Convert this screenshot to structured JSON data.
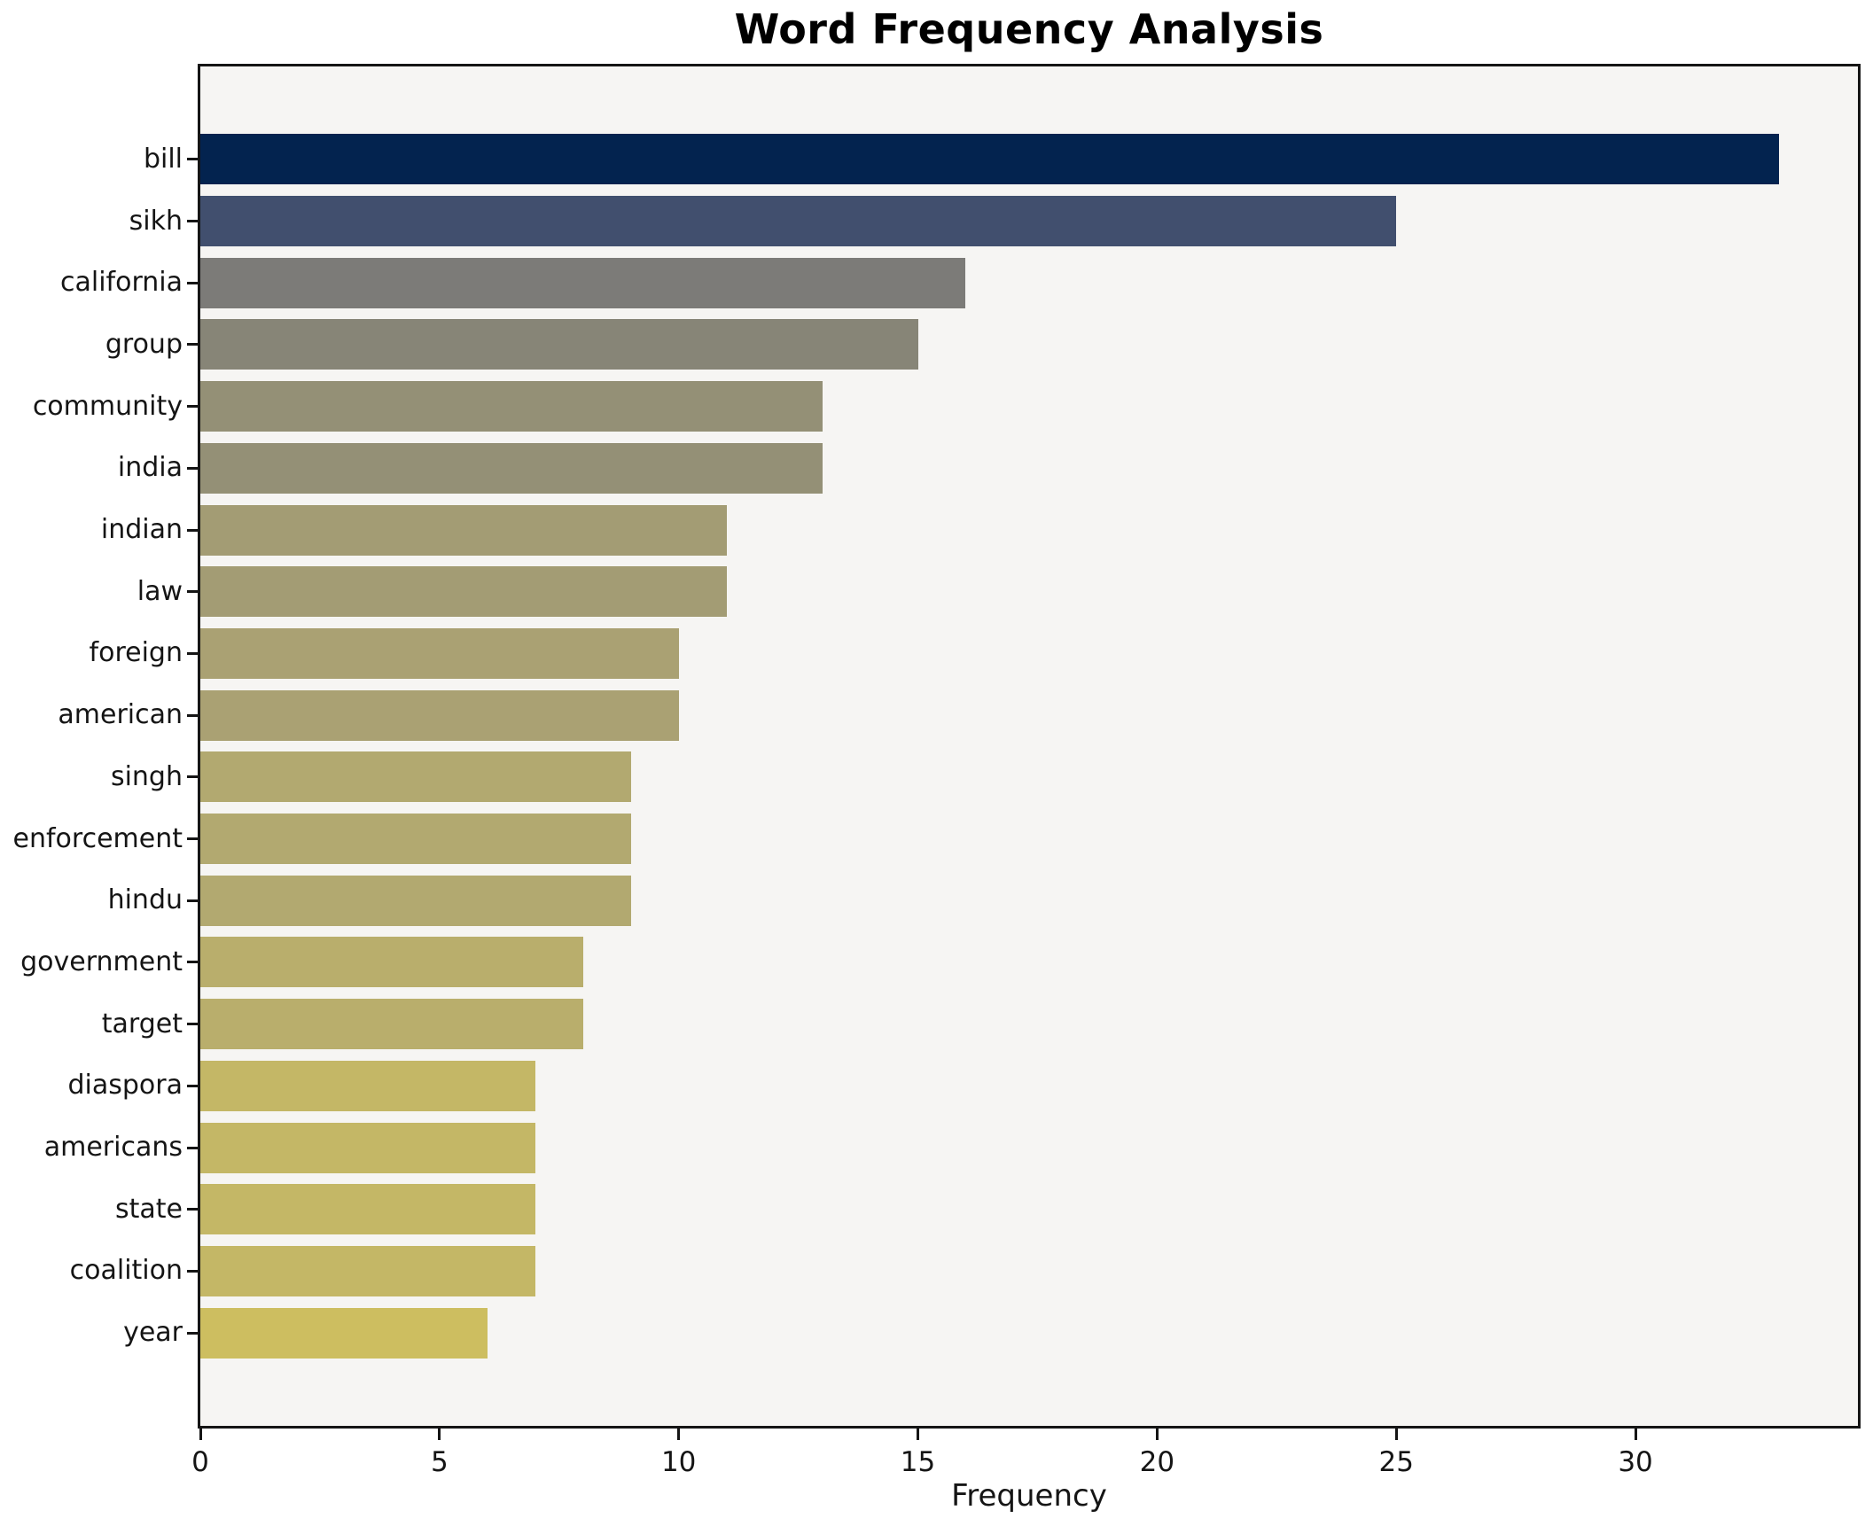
{
  "chart_data": {
    "type": "bar",
    "orientation": "horizontal",
    "title": "Word Frequency Analysis",
    "xlabel": "Frequency",
    "ylabel": "",
    "categories": [
      "bill",
      "sikh",
      "california",
      "group",
      "community",
      "india",
      "indian",
      "law",
      "foreign",
      "american",
      "singh",
      "enforcement",
      "hindu",
      "government",
      "target",
      "diaspora",
      "americans",
      "state",
      "coalition",
      "year"
    ],
    "values": [
      33,
      25,
      16,
      15,
      13,
      13,
      11,
      11,
      10,
      10,
      9,
      9,
      9,
      8,
      8,
      7,
      7,
      7,
      7,
      6
    ],
    "bar_colors": [
      "#03234f",
      "#414f6e",
      "#7c7b78",
      "#878577",
      "#949076",
      "#949076",
      "#a39c74",
      "#a39c74",
      "#aaa173",
      "#aaa173",
      "#b2a970",
      "#b2a970",
      "#b2a970",
      "#b9ae6c",
      "#b9ae6c",
      "#c4b766",
      "#c4b766",
      "#c4b766",
      "#c4b766",
      "#cdbe60"
    ],
    "xticks": [
      0,
      5,
      10,
      15,
      20,
      25,
      30
    ],
    "xlim": [
      0,
      34.65
    ],
    "grid": false,
    "legend": "none",
    "colors": {
      "plot_background": "#f6f5f3",
      "figure_background": "#ffffff",
      "spine": "#151515",
      "text": "#151515"
    }
  }
}
